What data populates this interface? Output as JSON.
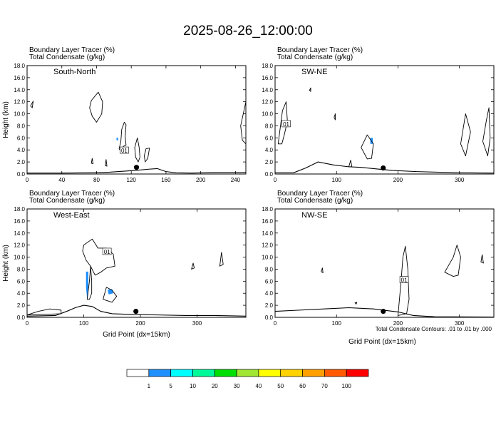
{
  "title": "2025-08-26_12:00:00",
  "footnote": "Total Condensate Contours: .01 to .01 by .000",
  "chart_data": [
    {
      "type": "contour-cross-section",
      "id": "south-north",
      "panel_label": "South-North",
      "header_line1": "Boundary Layer Tracer    (%)",
      "header_line2": "Total Condensate    (g/kg)",
      "ylabel": "Height (km)",
      "xlabel": "",
      "xlim": [
        0,
        252
      ],
      "ylim": [
        0,
        18
      ],
      "xticks": [
        0,
        40,
        80,
        120,
        160,
        200,
        240
      ],
      "yticks": [
        0.0,
        2.0,
        4.0,
        6.0,
        8.0,
        10.0,
        12.0,
        14.0,
        16.0,
        18.0
      ],
      "contour_label": "01",
      "contour_label_pos": [
        112,
        3.9
      ],
      "marker": [
        126,
        1.1
      ],
      "terrain": [
        [
          0,
          0.15
        ],
        [
          40,
          0.15
        ],
        [
          75,
          0.2
        ],
        [
          95,
          0.3
        ],
        [
          110,
          0.45
        ],
        [
          125,
          0.6
        ],
        [
          140,
          0.8
        ],
        [
          150,
          0.9
        ],
        [
          160,
          0.4
        ],
        [
          172,
          0.2
        ],
        [
          190,
          0.15
        ],
        [
          215,
          0.25
        ],
        [
          252,
          0.25
        ]
      ],
      "blobs": [
        [
          [
            111,
            4.6
          ],
          [
            114,
            4.8
          ],
          [
            113,
            6.2
          ],
          [
            114,
            8.2
          ],
          [
            112,
            8.6
          ],
          [
            109,
            7.4
          ],
          [
            108,
            5.4
          ],
          [
            106,
            4.2
          ],
          [
            109,
            3.5
          ]
        ],
        [
          [
            127,
            6.0
          ],
          [
            129,
            4.5
          ],
          [
            130,
            2.8
          ],
          [
            128,
            2.0
          ],
          [
            125,
            2.8
          ],
          [
            124,
            4.4
          ]
        ],
        [
          [
            136,
            2.0
          ],
          [
            139,
            2.6
          ],
          [
            141,
            4.3
          ],
          [
            137,
            4.2
          ],
          [
            135,
            3.0
          ]
        ],
        [
          [
            74,
            12.2
          ],
          [
            82,
            13.6
          ],
          [
            87,
            12.0
          ],
          [
            86,
            10.0
          ],
          [
            80,
            8.6
          ],
          [
            75,
            9.6
          ],
          [
            72,
            11.0
          ]
        ],
        [
          [
            246,
            8.0
          ],
          [
            252,
            12.0
          ],
          [
            252,
            5.0
          ],
          [
            248,
            5.6
          ]
        ],
        [
          [
            4,
            11.3
          ],
          [
            7,
            12.1
          ],
          [
            6,
            11.0
          ]
        ],
        [
          [
            74,
            1.8
          ],
          [
            75,
            2.6
          ],
          [
            76,
            1.7
          ]
        ],
        [
          [
            90,
            1.4
          ],
          [
            91,
            2.4
          ],
          [
            92,
            1.3
          ]
        ]
      ],
      "tracer_patches": [
        [
          [
            103,
            6.0
          ],
          [
            105,
            6.0
          ],
          [
            105,
            5.6
          ],
          [
            103,
            5.6
          ]
        ]
      ]
    },
    {
      "type": "contour-cross-section",
      "id": "sw-ne",
      "panel_label": "SW-NE",
      "header_line1": "Boundary Layer Tracer    (%)",
      "header_line2": "Total Condensate    (g/kg)",
      "ylabel": "",
      "xlabel": "",
      "xlim": [
        0,
        356
      ],
      "ylim": [
        0,
        18
      ],
      "xticks": [
        0,
        100,
        200,
        300
      ],
      "yticks": [
        0.0,
        2.0,
        4.0,
        6.0,
        8.0,
        10.0,
        12.0,
        14.0,
        16.0,
        18.0
      ],
      "contour_label": "01",
      "contour_label_pos": [
        18,
        8.3
      ],
      "marker": [
        176,
        1.0
      ],
      "terrain": [
        [
          0,
          0.2
        ],
        [
          30,
          0.2
        ],
        [
          50,
          1.0
        ],
        [
          70,
          2.0
        ],
        [
          95,
          1.5
        ],
        [
          120,
          1.2
        ],
        [
          140,
          1.1
        ],
        [
          160,
          0.9
        ],
        [
          190,
          0.6
        ],
        [
          230,
          0.4
        ],
        [
          300,
          0.2
        ],
        [
          356,
          0.15
        ]
      ],
      "blobs": [
        [
          [
            5,
            5.0
          ],
          [
            12,
            10.5
          ],
          [
            18,
            12.0
          ],
          [
            20,
            8.8
          ],
          [
            15,
            6.5
          ],
          [
            11,
            5.0
          ]
        ],
        [
          [
            140,
            4.4
          ],
          [
            150,
            6.5
          ],
          [
            160,
            5.0
          ],
          [
            157,
            2.6
          ],
          [
            150,
            2.5
          ]
        ],
        [
          [
            302,
            5.0
          ],
          [
            310,
            10.0
          ],
          [
            318,
            7.0
          ],
          [
            310,
            3.0
          ]
        ],
        [
          [
            338,
            5.4
          ],
          [
            344,
            9.0
          ],
          [
            348,
            11.0
          ],
          [
            350,
            6.0
          ],
          [
            346,
            3.0
          ]
        ],
        [
          [
            120,
            1.2
          ],
          [
            123,
            2.3
          ],
          [
            125,
            1.2
          ]
        ],
        [
          [
            96,
            9.4
          ],
          [
            98,
            10.0
          ],
          [
            98,
            9.0
          ]
        ],
        [
          [
            56,
            13.9
          ],
          [
            58,
            14.3
          ],
          [
            58,
            13.7
          ]
        ]
      ],
      "tracer_patches": [
        [
          [
            155,
            6.0
          ],
          [
            159,
            6.0
          ],
          [
            159,
            5.0
          ],
          [
            155,
            5.0
          ]
        ]
      ]
    },
    {
      "type": "contour-cross-section",
      "id": "west-east",
      "panel_label": "West-East",
      "header_line1": "Boundary Layer Tracer    (%)",
      "header_line2": "Total Condensate    (g/kg)",
      "ylabel": "Height (km)",
      "xlabel": "Grid Point (dx=15km)",
      "xlim": [
        0,
        386
      ],
      "ylim": [
        0,
        18
      ],
      "xticks": [
        0,
        100,
        200,
        300
      ],
      "yticks": [
        0.0,
        2.0,
        4.0,
        6.0,
        8.0,
        10.0,
        12.0,
        14.0,
        16.0,
        18.0
      ],
      "contour_label": "01",
      "contour_label_pos": [
        141,
        10.9
      ],
      "marker": [
        192,
        1.0
      ],
      "terrain": [
        [
          0,
          0.2
        ],
        [
          50,
          0.3
        ],
        [
          70,
          1.0
        ],
        [
          85,
          1.6
        ],
        [
          100,
          2.0
        ],
        [
          115,
          1.8
        ],
        [
          130,
          1.0
        ],
        [
          150,
          0.6
        ],
        [
          180,
          0.5
        ],
        [
          230,
          0.4
        ],
        [
          280,
          0.3
        ],
        [
          330,
          0.3
        ],
        [
          386,
          0.2
        ]
      ],
      "blobs": [
        [
          [
            100,
            12.0
          ],
          [
            115,
            13.0
          ],
          [
            125,
            11.5
          ],
          [
            140,
            11.5
          ],
          [
            152,
            10.5
          ],
          [
            155,
            8.5
          ],
          [
            140,
            8.2
          ],
          [
            130,
            7.5
          ],
          [
            120,
            7.0
          ],
          [
            112,
            8.5
          ],
          [
            104,
            9.5
          ],
          [
            98,
            11.0
          ]
        ],
        [
          [
            106,
            3.0
          ],
          [
            110,
            6.0
          ],
          [
            112,
            8.5
          ],
          [
            114,
            6.0
          ],
          [
            114,
            4.0
          ],
          [
            110,
            3.0
          ]
        ],
        [
          [
            134,
            3.0
          ],
          [
            140,
            5.0
          ],
          [
            150,
            4.5
          ],
          [
            158,
            3.5
          ],
          [
            150,
            2.5
          ]
        ],
        [
          [
            340,
            8.5
          ],
          [
            343,
            10.8
          ],
          [
            346,
            8.8
          ]
        ],
        [
          [
            0,
            0.4
          ],
          [
            20,
            1.0
          ],
          [
            40,
            1.4
          ],
          [
            60,
            1.2
          ],
          [
            60,
            0.6
          ],
          [
            30,
            0.5
          ]
        ],
        [
          [
            290,
            8.0
          ],
          [
            293,
            9.0
          ],
          [
            295,
            8.2
          ]
        ]
      ],
      "tracer_patches": [
        [
          [
            104,
            7.6
          ],
          [
            108,
            7.6
          ],
          [
            108,
            5.0
          ],
          [
            106,
            3.0
          ],
          [
            104,
            5.0
          ]
        ],
        [
          [
            142,
            4.6
          ],
          [
            150,
            4.7
          ],
          [
            152,
            4.0
          ],
          [
            144,
            3.8
          ]
        ]
      ]
    },
    {
      "type": "contour-cross-section",
      "id": "nw-se",
      "panel_label": "NW-SE",
      "header_line1": "Boundary Layer Tracer    (%)",
      "header_line2": "Total Condensate    (g/kg)",
      "ylabel": "",
      "xlabel": "Grid Point (dx=15km)",
      "xlim": [
        0,
        356
      ],
      "ylim": [
        0,
        18
      ],
      "xticks": [
        0,
        100,
        200,
        300
      ],
      "yticks": [
        0.0,
        2.0,
        4.0,
        6.0,
        8.0,
        10.0,
        12.0,
        14.0,
        16.0,
        18.0
      ],
      "contour_label": "01",
      "contour_label_pos": [
        210,
        6.2
      ],
      "marker": [
        176,
        1.0
      ],
      "terrain": [
        [
          0,
          1.0
        ],
        [
          40,
          1.2
        ],
        [
          80,
          1.4
        ],
        [
          120,
          1.6
        ],
        [
          160,
          1.4
        ],
        [
          200,
          0.9
        ],
        [
          225,
          0.3
        ],
        [
          260,
          0.1
        ],
        [
          356,
          0.05
        ]
      ],
      "blobs": [
        [
          [
            200,
            0.3
          ],
          [
            205,
            6.0
          ],
          [
            208,
            10.0
          ],
          [
            212,
            11.8
          ],
          [
            216,
            8.0
          ],
          [
            218,
            3.0
          ],
          [
            214,
            0.6
          ]
        ],
        [
          [
            276,
            7.5
          ],
          [
            290,
            10.0
          ],
          [
            296,
            12.0
          ],
          [
            302,
            10.0
          ],
          [
            298,
            7.0
          ],
          [
            290,
            6.8
          ]
        ],
        [
          [
            335,
            9.2
          ],
          [
            337,
            10.4
          ],
          [
            339,
            9.0
          ]
        ],
        [
          [
            75,
            7.6
          ],
          [
            77,
            8.2
          ],
          [
            78,
            7.4
          ]
        ],
        [
          [
            130,
            2.4
          ],
          [
            133,
            2.5
          ],
          [
            132,
            2.2
          ]
        ]
      ],
      "tracer_patches": []
    }
  ],
  "colorbar": {
    "levels": [
      "1",
      "5",
      "10",
      "20",
      "30",
      "40",
      "50",
      "60",
      "70",
      "100"
    ],
    "colors": [
      "#ffffff",
      "#1e90ff",
      "#00ffff",
      "#00fa9a",
      "#00e000",
      "#a0e632",
      "#ffff00",
      "#ffd200",
      "#ffa000",
      "#ff5a00",
      "#ff0000"
    ]
  }
}
